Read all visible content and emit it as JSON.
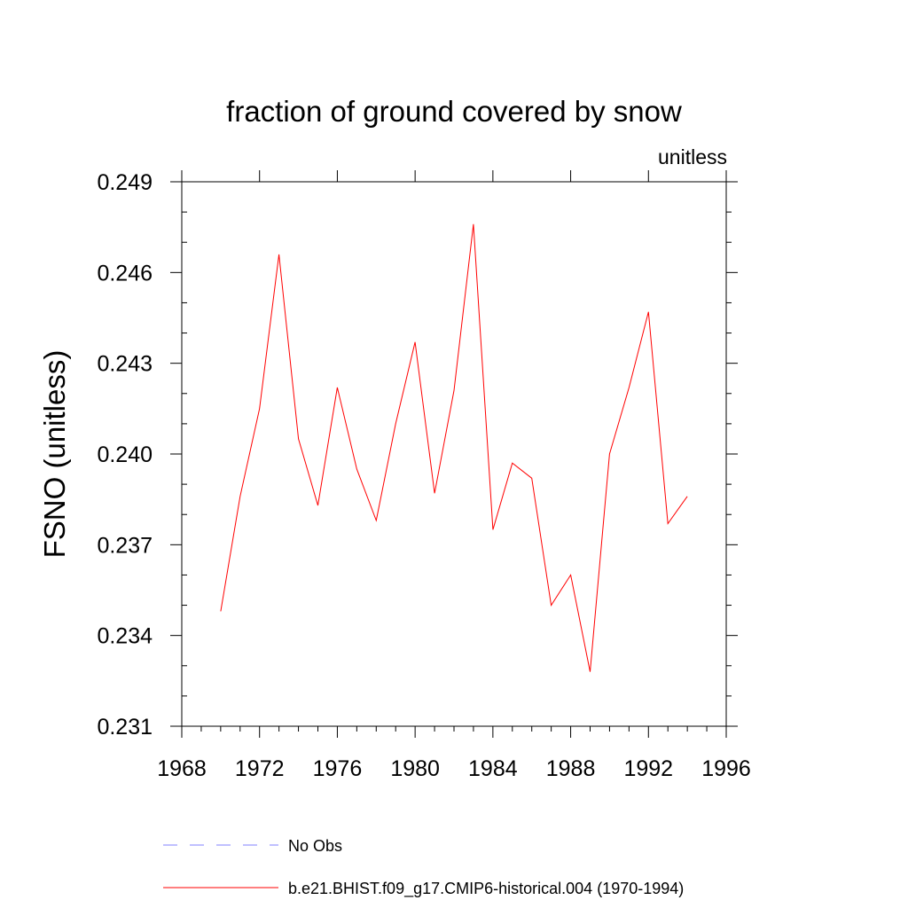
{
  "chart_data": {
    "type": "line",
    "title": "fraction of ground covered by snow",
    "units_label": "unitless",
    "ylabel": "FSNO  (unitless)",
    "xlabel": "",
    "xlim": [
      1968,
      1996
    ],
    "ylim": [
      0.231,
      0.249
    ],
    "x_ticks": [
      "1968",
      "1972",
      "1976",
      "1980",
      "1984",
      "1988",
      "1992",
      "1996"
    ],
    "y_ticks": [
      "0.231",
      "0.234",
      "0.237",
      "0.240",
      "0.243",
      "0.246",
      "0.249"
    ],
    "grid": false,
    "legend_placement": "below",
    "series": [
      {
        "name": "b.e21.BHIST.f09_g17.CMIP6-historical.004 (1970-1994)",
        "color": "#ff0000",
        "style": "solid",
        "x": [
          1970,
          1971,
          1972,
          1973,
          1974,
          1975,
          1976,
          1977,
          1978,
          1979,
          1980,
          1981,
          1982,
          1983,
          1984,
          1985,
          1986,
          1987,
          1988,
          1989,
          1990,
          1991,
          1992,
          1993,
          1994
        ],
        "y": [
          0.2348,
          0.2386,
          0.2415,
          0.2466,
          0.2405,
          0.2383,
          0.2422,
          0.2395,
          0.2378,
          0.241,
          0.2437,
          0.2387,
          0.2421,
          0.2476,
          0.2375,
          0.2397,
          0.2392,
          0.235,
          0.236,
          0.2328,
          0.24,
          0.2422,
          0.2447,
          0.2377,
          0.2386
        ]
      }
    ],
    "legend": [
      {
        "label": "No Obs",
        "color": "#8080ff",
        "style": "dashed"
      },
      {
        "label": "b.e21.BHIST.f09_g17.CMIP6-historical.004 (1970-1994)",
        "color": "#ff0000",
        "style": "solid"
      }
    ]
  }
}
